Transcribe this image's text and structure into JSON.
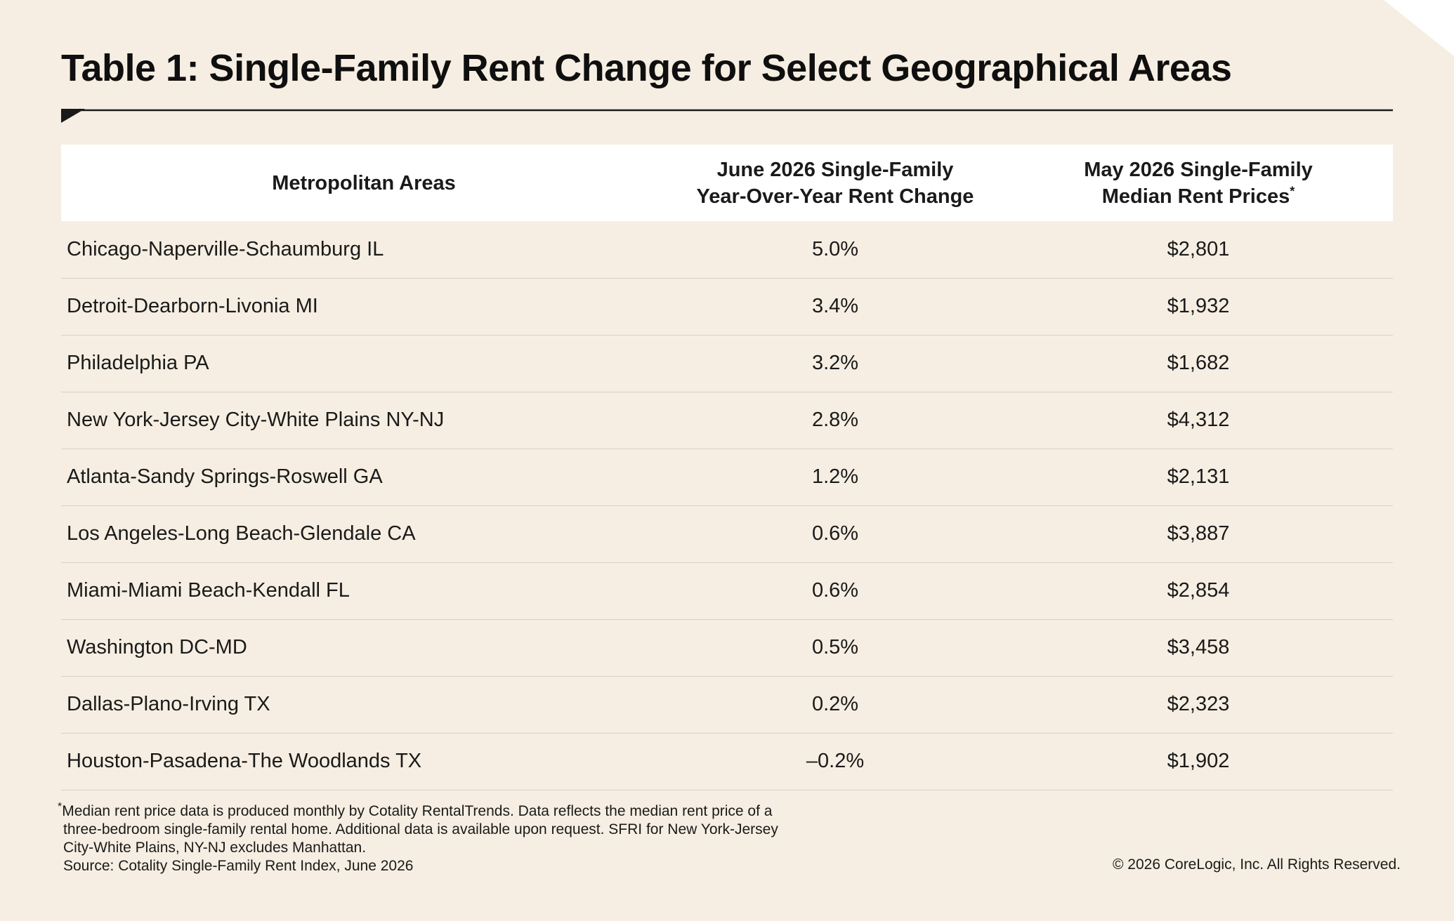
{
  "title": "Table 1: Single-Family Rent Change for Select Geographical Areas",
  "colors": {
    "background": "#f6eee2",
    "header_row": "#ffffff",
    "rule": "#1a1a1a",
    "row_divider": "#d9d0c3",
    "corner": "#ffffff"
  },
  "table": {
    "headers": {
      "area": "Metropolitan Areas",
      "change_line1": "June 2026 Single-Family",
      "change_line2": "Year-Over-Year Rent Change",
      "price_line1": "May 2026 Single-Family",
      "price_line2": "Median Rent Prices",
      "price_mark": "*"
    },
    "rows": [
      {
        "area": "Chicago-Naperville-Schaumburg IL",
        "change": "5.0%",
        "price": "$2,801"
      },
      {
        "area": "Detroit-Dearborn-Livonia MI",
        "change": "3.4%",
        "price": "$1,932"
      },
      {
        "area": "Philadelphia PA",
        "change": "3.2%",
        "price": "$1,682"
      },
      {
        "area": "New York-Jersey City-White Plains NY-NJ",
        "change": "2.8%",
        "price": "$4,312"
      },
      {
        "area": "Atlanta-Sandy Springs-Roswell GA",
        "change": "1.2%",
        "price": "$2,131"
      },
      {
        "area": "Los Angeles-Long Beach-Glendale CA",
        "change": "0.6%",
        "price": "$3,887"
      },
      {
        "area": "Miami-Miami Beach-Kendall FL",
        "change": "0.6%",
        "price": "$2,854"
      },
      {
        "area": "Washington DC-MD",
        "change": "0.5%",
        "price": "$3,458"
      },
      {
        "area": "Dallas-Plano-Irving TX",
        "change": "0.2%",
        "price": "$2,323"
      },
      {
        "area": "Houston-Pasadena-The Woodlands TX",
        "change": "–0.2%",
        "price": "$1,902"
      }
    ]
  },
  "footnote": {
    "mark": "*",
    "line1": "Median rent price data is produced monthly by Cotality RentalTrends. Data reflects the median rent price of a",
    "line2": "three-bedroom single-family rental home. Additional data is available upon request. SFRI for New York-Jersey",
    "line3": "City-White Plains, NY-NJ excludes Manhattan.",
    "source": "Source: Cotality Single-Family Rent Index, June 2026"
  },
  "copyright": "© 2026 CoreLogic, Inc. All Rights Reserved."
}
